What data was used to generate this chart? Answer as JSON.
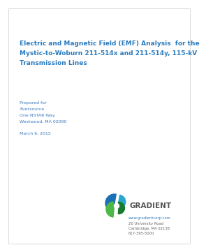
{
  "bg_color": "#ffffff",
  "title_line1": "Electric and Magnetic Field (EMF) Analysis  for the",
  "title_line2": "Mystic-to-Woburn 211-514x and 211-514y, 115-kV",
  "title_line3": "Transmission Lines",
  "title_color": "#2b7bbf",
  "title_fontsize": 6.5,
  "prepared_for_label": "Prepared for",
  "client_name": "Eversource",
  "address_line1": "One NSTAR Way",
  "address_line2": "Westwood, MA 02090",
  "date_line": "March 6, 2015",
  "text_color": "#3a7bbf",
  "small_text_fontsize": 4.5,
  "company_name": "GRADIENT",
  "company_name_color": "#555555",
  "company_name_fontsize": 7.5,
  "website": "www.gradientcorp.com",
  "addr1": "20 University Road",
  "addr2": "Cambridge, MA 02138",
  "phone": "617-395-5000",
  "footer_text_color": "#3a7bbf",
  "footer_dark_color": "#666666",
  "footer_fontsize": 3.8
}
